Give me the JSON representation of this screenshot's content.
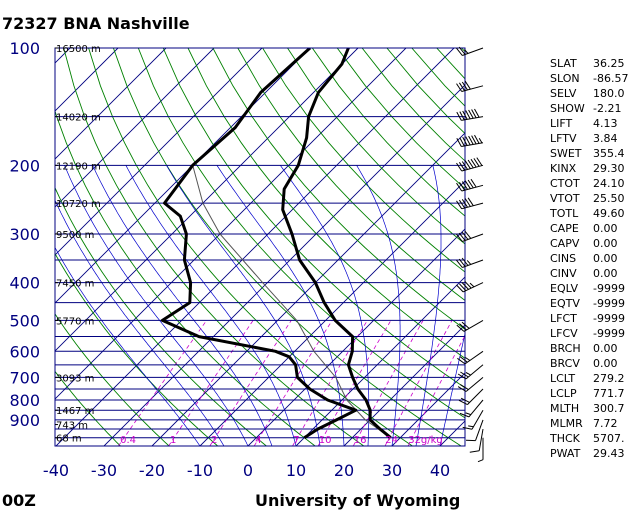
{
  "header": {
    "title": "72327 BNA Nashville"
  },
  "footer": {
    "time": "00Z",
    "source": "University of Wyoming"
  },
  "colors": {
    "isobar": "#000080",
    "isotherm": "#000080",
    "dry_adiabat": "#008000",
    "moist_adiabat": "#0000cc",
    "mixing_ratio": "#cc00cc",
    "trace": "#000000",
    "axis_text": "#000080"
  },
  "chart_data": {
    "type": "line",
    "subtype": "skew-T log-p",
    "x_ticks": [
      -40,
      -30,
      -20,
      -10,
      0,
      10,
      20,
      30,
      40
    ],
    "x_range": [
      -40,
      45
    ],
    "p_ticks": [
      100,
      200,
      300,
      400,
      500,
      600,
      700,
      800,
      900
    ],
    "p_range": [
      100,
      1050
    ],
    "height_labels": [
      {
        "p": 100,
        "label": "16500 m"
      },
      {
        "p": 150,
        "label": "14020 m"
      },
      {
        "p": 200,
        "label": "12190 m"
      },
      {
        "p": 250,
        "label": "10720 m"
      },
      {
        "p": 300,
        "label": "9500 m"
      },
      {
        "p": 400,
        "label": "7450 m"
      },
      {
        "p": 500,
        "label": "5770 m"
      },
      {
        "p": 700,
        "label": "3093 m"
      },
      {
        "p": 850,
        "label": "1467 m"
      },
      {
        "p": 925,
        "label": "743 m"
      },
      {
        "p": 1000,
        "label": "68 m"
      }
    ],
    "mixing_ratio_labels": [
      "0.4",
      "1",
      "2",
      "4",
      "7",
      "10",
      "16",
      "24",
      "32g/kg"
    ],
    "mixing_ratio_values": [
      0.4,
      1,
      2,
      4,
      7,
      10,
      16,
      24,
      32
    ],
    "series": [
      {
        "role": "temperature",
        "points": [
          [
            100,
            -62
          ],
          [
            110,
            -60
          ],
          [
            130,
            -59
          ],
          [
            150,
            -56
          ],
          [
            170,
            -52
          ],
          [
            200,
            -48
          ],
          [
            230,
            -46
          ],
          [
            260,
            -42
          ],
          [
            300,
            -35
          ],
          [
            350,
            -28
          ],
          [
            400,
            -20
          ],
          [
            450,
            -14
          ],
          [
            500,
            -8
          ],
          [
            550,
            -1
          ],
          [
            600,
            2
          ],
          [
            650,
            4
          ],
          [
            700,
            7.5
          ],
          [
            750,
            11
          ],
          [
            800,
            15
          ],
          [
            850,
            18
          ],
          [
            900,
            20
          ],
          [
            950,
            24
          ],
          [
            1000,
            28
          ]
        ]
      },
      {
        "role": "dewpoint",
        "points": [
          [
            100,
            -70
          ],
          [
            130,
            -71
          ],
          [
            160,
            -69
          ],
          [
            200,
            -70
          ],
          [
            250,
            -68
          ],
          [
            270,
            -62
          ],
          [
            300,
            -57
          ],
          [
            350,
            -52
          ],
          [
            400,
            -46
          ],
          [
            450,
            -42
          ],
          [
            500,
            -44
          ],
          [
            550,
            -33
          ],
          [
            600,
            -14
          ],
          [
            620,
            -10
          ],
          [
            650,
            -7
          ],
          [
            700,
            -4
          ],
          [
            750,
            1
          ],
          [
            800,
            7
          ],
          [
            850,
            15
          ],
          [
            900,
            13
          ],
          [
            950,
            11
          ],
          [
            1000,
            10
          ]
        ]
      },
      {
        "role": "parcel",
        "points": [
          [
            1000,
            28
          ],
          [
            900,
            19
          ],
          [
            800,
            11
          ],
          [
            700,
            4
          ],
          [
            600,
            -6
          ],
          [
            500,
            -16
          ],
          [
            400,
            -31
          ],
          [
            300,
            -50
          ],
          [
            250,
            -60
          ],
          [
            200,
            -70
          ]
        ]
      }
    ],
    "wind_barbs": [
      {
        "p": 100,
        "dir": 250,
        "spd": 25
      },
      {
        "p": 125,
        "dir": 255,
        "spd": 40
      },
      {
        "p": 150,
        "dir": 260,
        "spd": 70
      },
      {
        "p": 175,
        "dir": 260,
        "spd": 75
      },
      {
        "p": 200,
        "dir": 255,
        "spd": 80
      },
      {
        "p": 225,
        "dir": 255,
        "spd": 60
      },
      {
        "p": 250,
        "dir": 255,
        "spd": 50
      },
      {
        "p": 300,
        "dir": 250,
        "spd": 40
      },
      {
        "p": 350,
        "dir": 250,
        "spd": 35
      },
      {
        "p": 400,
        "dir": 245,
        "spd": 45
      },
      {
        "p": 500,
        "dir": 240,
        "spd": 30
      },
      {
        "p": 600,
        "dir": 235,
        "spd": 25
      },
      {
        "p": 650,
        "dir": 230,
        "spd": 25
      },
      {
        "p": 700,
        "dir": 230,
        "spd": 20
      },
      {
        "p": 750,
        "dir": 225,
        "spd": 20
      },
      {
        "p": 800,
        "dir": 220,
        "spd": 15
      },
      {
        "p": 850,
        "dir": 210,
        "spd": 15
      },
      {
        "p": 900,
        "dir": 200,
        "spd": 10
      },
      {
        "p": 950,
        "dir": 190,
        "spd": 10
      },
      {
        "p": 1000,
        "dir": 180,
        "spd": 5
      }
    ]
  },
  "indices": [
    {
      "name": "SLAT",
      "value": "36.25"
    },
    {
      "name": "SLON",
      "value": "-86.57"
    },
    {
      "name": "SELV",
      "value": "180.0"
    },
    {
      "name": "SHOW",
      "value": "-2.21"
    },
    {
      "name": "LIFT",
      "value": "4.13"
    },
    {
      "name": "LFTV",
      "value": "3.84"
    },
    {
      "name": "SWET",
      "value": "355.4"
    },
    {
      "name": "KINX",
      "value": "29.30"
    },
    {
      "name": "CTOT",
      "value": "24.10"
    },
    {
      "name": "VTOT",
      "value": "25.50"
    },
    {
      "name": "TOTL",
      "value": "49.60"
    },
    {
      "name": "CAPE",
      "value": "0.00"
    },
    {
      "name": "CAPV",
      "value": "0.00"
    },
    {
      "name": "CINS",
      "value": "0.00"
    },
    {
      "name": "CINV",
      "value": "0.00"
    },
    {
      "name": "EQLV",
      "value": "-9999"
    },
    {
      "name": "EQTV",
      "value": "-9999"
    },
    {
      "name": "LFCT",
      "value": "-9999"
    },
    {
      "name": "LFCV",
      "value": "-9999"
    },
    {
      "name": "BRCH",
      "value": "0.00"
    },
    {
      "name": "BRCV",
      "value": "0.00"
    },
    {
      "name": "LCLT",
      "value": "279.2"
    },
    {
      "name": "LCLP",
      "value": "771.7"
    },
    {
      "name": "MLTH",
      "value": "300.7"
    },
    {
      "name": "MLMR",
      "value": "7.72"
    },
    {
      "name": "THCK",
      "value": "5707."
    },
    {
      "name": "PWAT",
      "value": "29.43"
    }
  ]
}
